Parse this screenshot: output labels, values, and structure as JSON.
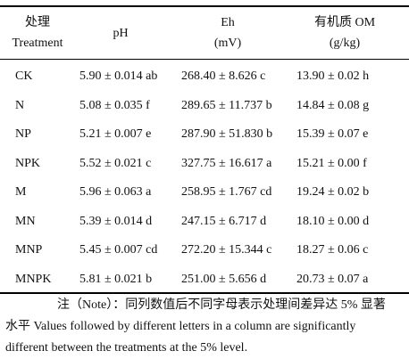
{
  "table": {
    "headers": {
      "treatment_zh": "处理",
      "treatment_en": "Treatment",
      "ph": "pH",
      "eh_name": "Eh",
      "eh_unit": "(mV)",
      "om_name": "有机质 OM",
      "om_unit": "(g/kg)"
    },
    "rows": [
      {
        "treatment": "CK",
        "ph": "5.90 ± 0.014 ab",
        "eh": "268.40 ± 8.626 c",
        "om": "13.90 ± 0.02 h"
      },
      {
        "treatment": "N",
        "ph": "5.08 ± 0.035 f",
        "eh": "289.65 ± 11.737 b",
        "om": "14.84 ± 0.08 g"
      },
      {
        "treatment": "NP",
        "ph": "5.21 ± 0.007 e",
        "eh": "287.90 ± 51.830 b",
        "om": "15.39 ± 0.07 e"
      },
      {
        "treatment": "NPK",
        "ph": "5.52 ± 0.021 c",
        "eh": "327.75 ± 16.617 a",
        "om": "15.21 ± 0.00 f"
      },
      {
        "treatment": "M",
        "ph": "5.96 ± 0.063 a",
        "eh": "258.95 ± 1.767 cd",
        "om": "19.24 ± 0.02 b"
      },
      {
        "treatment": "MN",
        "ph": "5.39 ± 0.014 d",
        "eh": "247.15 ± 6.717 d",
        "om": "18.10 ± 0.00 d"
      },
      {
        "treatment": "MNP",
        "ph": "5.45 ± 0.007 cd",
        "eh": "272.20 ± 15.344 c",
        "om": "18.27 ± 0.06 c"
      },
      {
        "treatment": "MNPK",
        "ph": "5.81 ± 0.021 b",
        "eh": "251.00 ± 5.656 d",
        "om": "20.73 ± 0.07 a"
      }
    ]
  },
  "note": {
    "line1": "注（Note）：同列数值后不同字母表示处理间差异达 5% 显著",
    "line2": "水平 Values followed by different letters in a column are significantly",
    "line3": "different between the treatments at the 5% level."
  }
}
